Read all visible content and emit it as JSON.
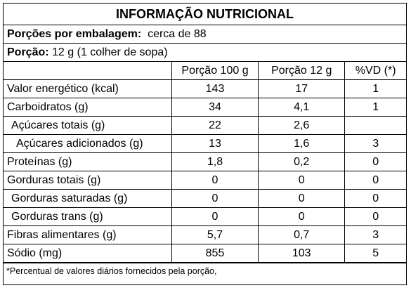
{
  "title": "INFORMAÇÃO NUTRICIONAL",
  "servings": {
    "label": "Porções por embalagem:",
    "value": "cerca de 88"
  },
  "portion": {
    "label": "Porção:",
    "value": "12 g (1 colher de sopa)"
  },
  "columns": [
    "",
    "Porção 100 g",
    "Porção 12 g",
    "%VD (*)"
  ],
  "rows": [
    {
      "name": "Valor energético (kcal)",
      "p100": "143",
      "p12": "17",
      "vd": "1",
      "indent": 0
    },
    {
      "name": "Carboidratos (g)",
      "p100": "34",
      "p12": "4,1",
      "vd": "1",
      "indent": 0
    },
    {
      "name": "Açúcares totais (g)",
      "p100": "22",
      "p12": "2,6",
      "vd": "",
      "indent": 1
    },
    {
      "name": "Açúcares adicionados (g)",
      "p100": "13",
      "p12": "1,6",
      "vd": "3",
      "indent": 2
    },
    {
      "name": "Proteínas (g)",
      "p100": "1,8",
      "p12": "0,2",
      "vd": "0",
      "indent": 0
    },
    {
      "name": "Gorduras totais (g)",
      "p100": "0",
      "p12": "0",
      "vd": "0",
      "indent": 0
    },
    {
      "name": "Gorduras saturadas (g)",
      "p100": "0",
      "p12": "0",
      "vd": "0",
      "indent": 1
    },
    {
      "name": "Gorduras trans (g)",
      "p100": "0",
      "p12": "0",
      "vd": "0",
      "indent": 1
    },
    {
      "name": "Fibras alimentares (g)",
      "p100": "5,7",
      "p12": "0,7",
      "vd": "3",
      "indent": 0
    },
    {
      "name": "Sódio (mg)",
      "p100": "855",
      "p12": "103",
      "vd": "5",
      "indent": 0
    }
  ],
  "footnote": "*Percentual de valores diários fornecidos pela porção,"
}
